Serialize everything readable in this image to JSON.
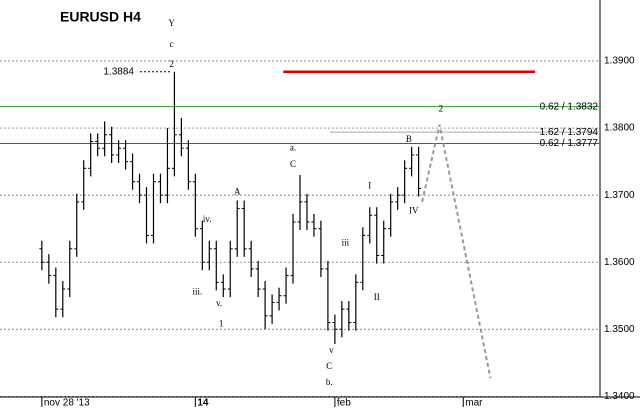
{
  "chart_data": {
    "type": "ohlc",
    "title": "EURUSD H4",
    "x": [
      0,
      1,
      2,
      3,
      4,
      5,
      6,
      7,
      8,
      9,
      10,
      11,
      12,
      13,
      14,
      15,
      16,
      17,
      18,
      19,
      20,
      21,
      22,
      23,
      24,
      25,
      26,
      27,
      28,
      29,
      30,
      31,
      32,
      33,
      34,
      35,
      36,
      37,
      38,
      39,
      40,
      41,
      42,
      43,
      44,
      45,
      46,
      47,
      48,
      49,
      50,
      51,
      52,
      53,
      54
    ],
    "open": [
      1.362,
      1.36,
      1.358,
      1.353,
      1.356,
      1.362,
      1.369,
      1.374,
      1.378,
      1.377,
      1.379,
      1.376,
      1.377,
      1.375,
      1.372,
      1.37,
      1.364,
      1.372,
      1.37,
      1.374,
      1.379,
      1.377,
      1.372,
      1.365,
      1.36,
      1.362,
      1.357,
      1.356,
      1.362,
      1.368,
      1.362,
      1.359,
      1.356,
      1.352,
      1.354,
      1.355,
      1.358,
      1.366,
      1.369,
      1.366,
      1.365,
      1.359,
      1.351,
      1.35,
      1.353,
      1.351,
      1.357,
      1.364,
      1.367,
      1.361,
      1.365,
      1.369,
      1.37,
      1.374,
      1.376
    ],
    "high": [
      1.3632,
      1.3612,
      1.3592,
      1.3572,
      1.3632,
      1.3702,
      1.3752,
      1.3792,
      1.3792,
      1.381,
      1.3802,
      1.3782,
      1.3782,
      1.3762,
      1.3732,
      1.3712,
      1.3732,
      1.3732,
      1.38,
      1.3884,
      1.3815,
      1.3782,
      1.3732,
      1.3662,
      1.3632,
      1.3632,
      1.3582,
      1.3632,
      1.3692,
      1.3692,
      1.3632,
      1.3602,
      1.3572,
      1.3552,
      1.3562,
      1.3592,
      1.3672,
      1.373,
      1.3702,
      1.3672,
      1.3662,
      1.3602,
      1.3522,
      1.3542,
      1.3542,
      1.3582,
      1.3652,
      1.3682,
      1.3682,
      1.3662,
      1.3702,
      1.3712,
      1.3752,
      1.3772,
      1.3772
    ],
    "low": [
      1.3588,
      1.3568,
      1.3518,
      1.3518,
      1.3548,
      1.3608,
      1.3678,
      1.3728,
      1.3758,
      1.3758,
      1.3748,
      1.3748,
      1.3738,
      1.3708,
      1.3688,
      1.3628,
      1.3628,
      1.3688,
      1.3688,
      1.3728,
      1.3758,
      1.3708,
      1.3638,
      1.3588,
      1.3588,
      1.3558,
      1.3548,
      1.3548,
      1.3608,
      1.3608,
      1.3578,
      1.3548,
      1.35,
      1.3508,
      1.3528,
      1.3538,
      1.3568,
      1.3648,
      1.3648,
      1.3638,
      1.3578,
      1.3498,
      1.3478,
      1.3488,
      1.3498,
      1.3498,
      1.3558,
      1.3628,
      1.3598,
      1.3598,
      1.3638,
      1.3678,
      1.3688,
      1.3728,
      1.3698
    ],
    "close": [
      1.36,
      1.358,
      1.353,
      1.356,
      1.362,
      1.369,
      1.374,
      1.378,
      1.377,
      1.379,
      1.376,
      1.377,
      1.375,
      1.372,
      1.37,
      1.364,
      1.372,
      1.37,
      1.374,
      1.379,
      1.377,
      1.372,
      1.365,
      1.36,
      1.362,
      1.357,
      1.356,
      1.362,
      1.368,
      1.362,
      1.359,
      1.356,
      1.352,
      1.354,
      1.355,
      1.358,
      1.366,
      1.369,
      1.366,
      1.365,
      1.359,
      1.351,
      1.35,
      1.353,
      1.351,
      1.357,
      1.364,
      1.367,
      1.361,
      1.365,
      1.369,
      1.37,
      1.374,
      1.376,
      1.371
    ],
    "color": "#000000",
    "xlim": [
      -6,
      80
    ],
    "ylim": [
      1.3399,
      1.3991
    ],
    "yticks": [
      {
        "value": 1.34,
        "label": "1.3400"
      },
      {
        "value": 1.35,
        "label": "1.3500"
      },
      {
        "value": 1.36,
        "label": "1.3600"
      },
      {
        "value": 1.37,
        "label": "1.3700"
      },
      {
        "value": 1.38,
        "label": "1.3800"
      },
      {
        "value": 1.39,
        "label": "1.3900"
      }
    ],
    "xticks": [
      {
        "value": 0,
        "label": "nov 28 '13"
      },
      {
        "value": 22,
        "label": "14"
      },
      {
        "value": 42,
        "label": "feb"
      },
      {
        "value": 60.4,
        "label": "mar"
      }
    ],
    "grid": true,
    "levels": [
      {
        "value": 1.3884,
        "color": "#e00000",
        "xlim": [
          34.6,
          70.7
        ]
      },
      {
        "value": 1.3832,
        "label": "0.62 / 1.3832",
        "color": "#2e9e2e",
        "xlim": [
          -6,
          80
        ]
      },
      {
        "value": 1.3794,
        "label": "1.62 / 1.3794",
        "color": "#a8a8a8",
        "xlim": [
          41.3,
          80
        ]
      },
      {
        "value": 1.3777,
        "label": "0.62 / 1.3777",
        "color": "#a0305a",
        "xlim": [
          -6,
          80
        ]
      }
    ],
    "projection": {
      "x": [
        54.5,
        57,
        64.3
      ],
      "values": [
        1.369,
        1.3805,
        1.3427
      ],
      "color": "#999999"
    },
    "annotations": [
      {
        "text": "Y",
        "x": 18.6,
        "y": 1.3955,
        "color": "#c03030"
      },
      {
        "text": "c",
        "x": 18.6,
        "y": 1.3924,
        "color": "#2040c0"
      },
      {
        "text": "2",
        "x": 18.6,
        "y": 1.3894,
        "color": "#e00000"
      },
      {
        "text": "1",
        "x": 25.7,
        "y": 1.3507,
        "color": "#e00000"
      },
      {
        "text": "2",
        "x": 57.2,
        "y": 1.3828,
        "color": "#e00000"
      },
      {
        "text": "A",
        "x": 28.0,
        "y": 1.3704,
        "color": "#2e9e2e"
      },
      {
        "text": "C",
        "x": 36.0,
        "y": 1.3745,
        "color": "#2e9e2e"
      },
      {
        "text": "a.",
        "x": 36.0,
        "y": 1.377,
        "color": "#888888"
      },
      {
        "text": "b.",
        "x": 41.2,
        "y": 1.342,
        "color": "#888888"
      },
      {
        "text": "C",
        "x": 41.2,
        "y": 1.3444,
        "color": "#2e9e2e"
      },
      {
        "text": "iv.",
        "x": 23.7,
        "y": 1.3663,
        "color": "#888888"
      },
      {
        "text": "iii.",
        "x": 22.3,
        "y": 1.3555,
        "color": "#888888"
      },
      {
        "text": "v.",
        "x": 25.4,
        "y": 1.3538,
        "color": "#888888"
      },
      {
        "text": "B",
        "x": 52.6,
        "y": 1.3782,
        "color": "#2e9e2e"
      },
      {
        "text": "IV",
        "x": 53.3,
        "y": 1.3676,
        "color": "#2e9e2e"
      },
      {
        "text": "I",
        "x": 47.0,
        "y": 1.3713,
        "color": "#2e9e2e"
      },
      {
        "text": "II",
        "x": 48.0,
        "y": 1.3547,
        "color": "#2e9e2e"
      },
      {
        "text": "iii",
        "x": 43.5,
        "y": 1.3628,
        "color": "#d0207a"
      },
      {
        "text": "v",
        "x": 41.5,
        "y": 1.3468,
        "color": "#d0207a"
      }
    ]
  }
}
